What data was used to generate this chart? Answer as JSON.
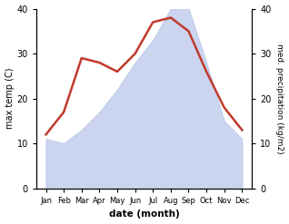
{
  "months": [
    "Jan",
    "Feb",
    "Mar",
    "Apr",
    "May",
    "Jun",
    "Jul",
    "Aug",
    "Sep",
    "Oct",
    "Nov",
    "Dec"
  ],
  "temp": [
    12,
    17,
    29,
    28,
    26,
    30,
    37,
    38,
    35,
    26,
    18,
    13
  ],
  "precip": [
    11,
    10,
    13,
    17,
    22,
    28,
    33,
    40,
    40,
    28,
    15,
    11
  ],
  "precip_fill_color": "#bbc8ea",
  "precip_fill_alpha": 0.75,
  "temp_line_color": "#c0392b",
  "left_ylim": [
    0,
    40
  ],
  "right_ylim": [
    0,
    40
  ],
  "left_yticks": [
    0,
    10,
    20,
    30,
    40
  ],
  "right_yticks": [
    0,
    10,
    20,
    30,
    40
  ],
  "xlabel": "date (month)",
  "ylabel_left": "max temp (C)",
  "ylabel_right": "med. precipitation (kg/m2)",
  "bg_color": "#ffffff",
  "line_width": 1.8
}
